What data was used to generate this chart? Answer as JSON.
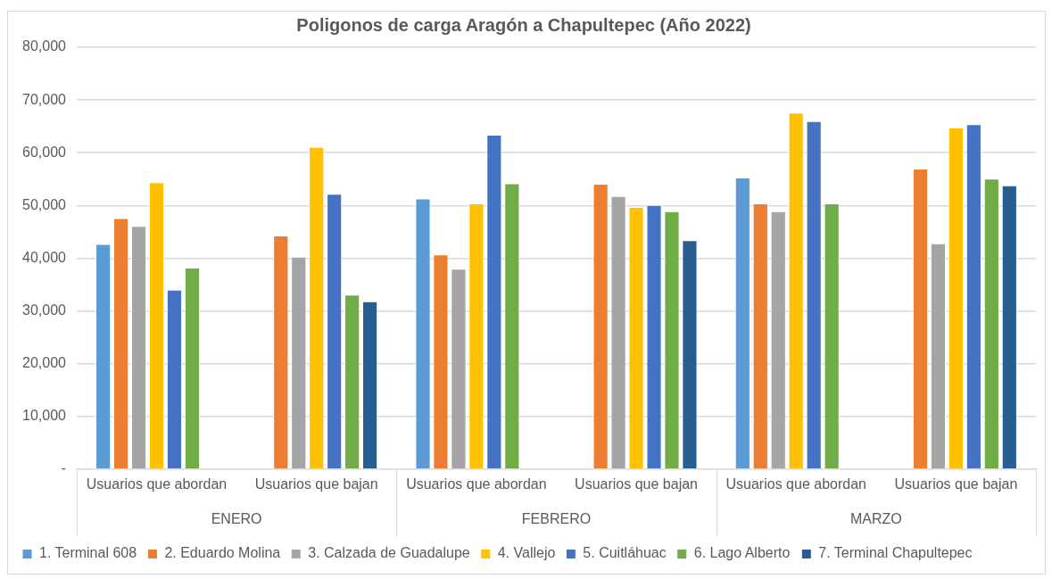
{
  "chart_data": {
    "type": "bar",
    "title": "Poligonos de carga Aragón a Chapultepec (Año 2022)",
    "categories": [
      "Usuarios que abordan",
      "Usuarios que bajan",
      "Usuarios que abordan",
      "Usuarios que bajan",
      "Usuarios que abordan",
      "Usuarios que bajan"
    ],
    "annotations": [
      "ENERO",
      "FEBRERO",
      "MARZO"
    ],
    "series": [
      {
        "name": "1. Terminal 608",
        "color": "#5b9bd5",
        "values": [
          42700,
          null,
          51300,
          null,
          55300,
          null
        ]
      },
      {
        "name": "2. Eduardo Molina",
        "color": "#ed7d31",
        "values": [
          47600,
          44300,
          40700,
          54100,
          50400,
          57000
        ]
      },
      {
        "name": "3. Calzada de Guadalupe",
        "color": "#a5a5a5",
        "values": [
          46100,
          40300,
          38000,
          51800,
          48900,
          42800
        ]
      },
      {
        "name": "4. Vallejo",
        "color": "#ffc000",
        "values": [
          54400,
          61100,
          50400,
          49700,
          67600,
          64800
        ]
      },
      {
        "name": "5. Cuitláhuac",
        "color": "#4472c4",
        "values": [
          34000,
          52200,
          63400,
          50100,
          66000,
          65400
        ]
      },
      {
        "name": "6. Lago Alberto",
        "color": "#70ad47",
        "values": [
          38200,
          33100,
          54200,
          48900,
          50400,
          55100
        ]
      },
      {
        "name": "7. Terminal Chapultepec",
        "color": "#255e91",
        "values": [
          null,
          31800,
          null,
          43400,
          null,
          53800
        ]
      }
    ],
    "ylim": [
      0,
      80000
    ],
    "yticks": [
      {
        "value": 0,
        "label": "-"
      },
      {
        "value": 10000,
        "label": "10,000"
      },
      {
        "value": 20000,
        "label": "20,000"
      },
      {
        "value": 30000,
        "label": "30,000"
      },
      {
        "value": 40000,
        "label": "40,000"
      },
      {
        "value": 50000,
        "label": "50,000"
      },
      {
        "value": 60000,
        "label": "60,000"
      },
      {
        "value": 70000,
        "label": "70,000"
      },
      {
        "value": 80000,
        "label": "80,000"
      }
    ],
    "grid": "y",
    "legend": "bottom"
  }
}
